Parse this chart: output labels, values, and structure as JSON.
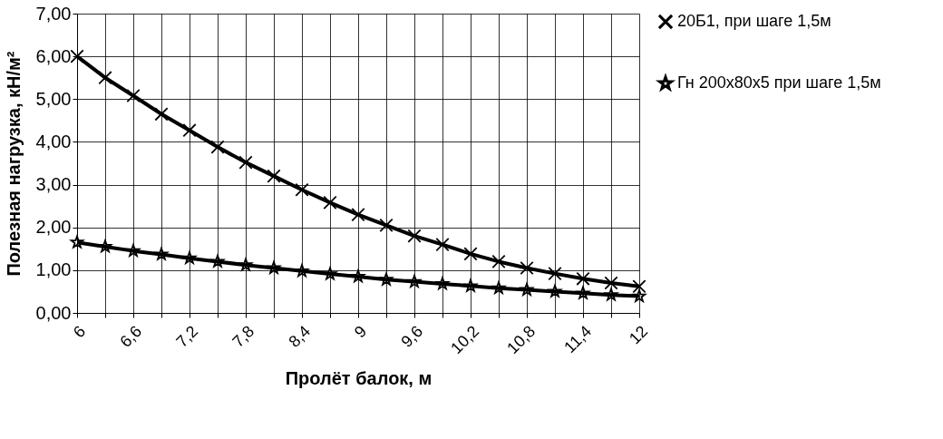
{
  "chart_data": {
    "type": "line",
    "xlabel": "Пролёт балок, м",
    "ylabel": "Полезная нагрузка, кН/м²",
    "categories": [
      "6",
      null,
      "6,6",
      null,
      "7,2",
      null,
      "7,8",
      null,
      "8,4",
      null,
      "9",
      null,
      "9,6",
      null,
      "10,2",
      null,
      "10,8",
      null,
      "11,4",
      null,
      "12"
    ],
    "series": [
      {
        "name": "20Б1, при шаге 1,5м",
        "color": "#000000",
        "marker": "cross",
        "values": [
          6.0,
          5.5,
          5.08,
          4.65,
          4.27,
          3.88,
          3.52,
          3.2,
          2.88,
          2.58,
          2.3,
          2.05,
          1.8,
          1.6,
          1.38,
          1.2,
          1.05,
          0.92,
          0.8,
          0.7,
          0.62
        ]
      },
      {
        "name": "Гн 200x80x5 при шаге 1,5м",
        "color": "#000000",
        "marker": "star",
        "values": [
          1.65,
          1.55,
          1.45,
          1.37,
          1.28,
          1.2,
          1.12,
          1.05,
          0.98,
          0.91,
          0.85,
          0.78,
          0.73,
          0.68,
          0.63,
          0.58,
          0.54,
          0.5,
          0.46,
          0.42,
          0.39
        ]
      }
    ],
    "ylim": [
      0,
      7
    ],
    "yticks": [
      {
        "value": 0,
        "label": "0,00"
      },
      {
        "value": 1,
        "label": "1,00"
      },
      {
        "value": 2,
        "label": "2,00"
      },
      {
        "value": 3,
        "label": "3,00"
      },
      {
        "value": 4,
        "label": "4,00"
      },
      {
        "value": 5,
        "label": "5,00"
      },
      {
        "value": 6,
        "label": "6,00"
      },
      {
        "value": 7,
        "label": "7,00"
      }
    ],
    "grid": true,
    "legend": "right",
    "line_style": "solid"
  }
}
